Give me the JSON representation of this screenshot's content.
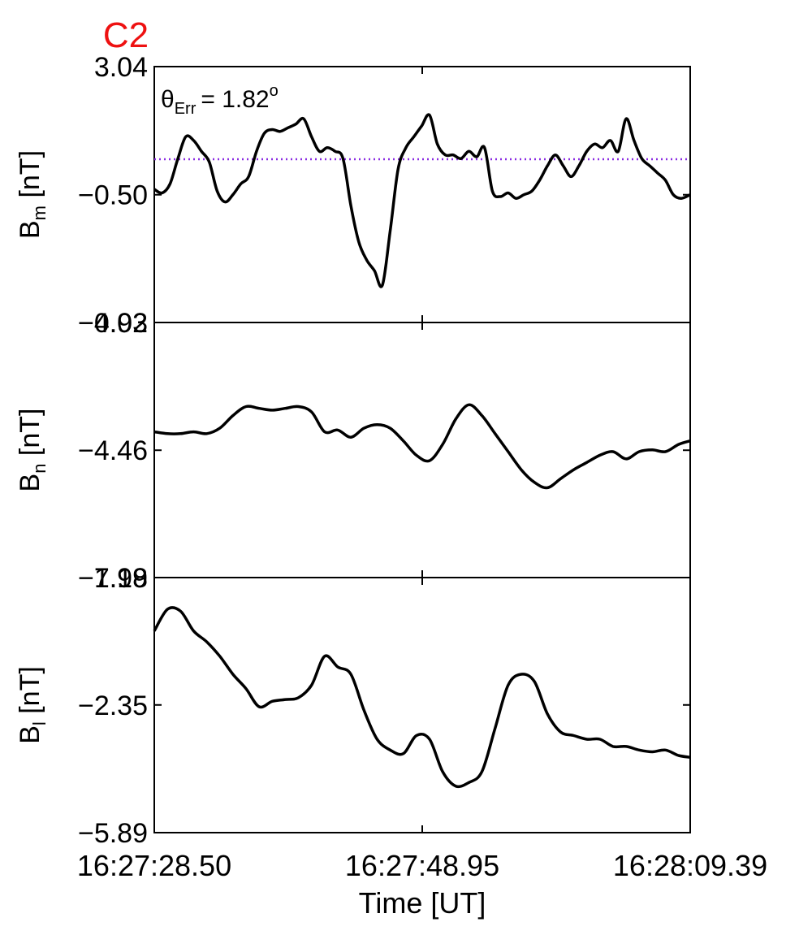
{
  "figure": {
    "spacecraft_label": "C2",
    "spacecraft_color": "#ee1111",
    "x_axis_label": "Time [UT]",
    "x_tick_labels": [
      "16:27:28.50",
      "16:27:48.95",
      "16:28:09.39"
    ],
    "annotation": {
      "theta": "θ",
      "subscript": "Err",
      "value": "=  1.82",
      "degree": "o"
    }
  },
  "chart_data": [
    {
      "type": "line",
      "title": "",
      "ylabel": {
        "main": "B",
        "sub": "m",
        "unit": " [nT]"
      },
      "ylim": [
        -4.03,
        3.04
      ],
      "yticks": [
        -4.03,
        -0.5,
        3.04
      ],
      "ytick_labels": [
        "−4.03",
        "−0.50",
        "3.04"
      ],
      "xlim": [
        0,
        40.89
      ],
      "reference_line": {
        "value": 0.48,
        "color": "#8a2be2",
        "style": "dotted"
      },
      "series": [
        {
          "color": "#000000",
          "x": [
            0,
            0.6,
            1.2,
            1.8,
            2.4,
            3.0,
            3.6,
            4.2,
            4.8,
            5.4,
            6.0,
            6.6,
            7.2,
            7.8,
            8.4,
            9.0,
            9.6,
            10.2,
            10.8,
            11.4,
            12.0,
            12.6,
            13.2,
            13.8,
            14.4,
            15.0,
            15.6,
            16.2,
            16.8,
            17.4,
            18.0,
            18.6,
            19.2,
            19.8,
            20.4,
            21.0,
            21.6,
            22.2,
            22.8,
            23.4,
            24.0,
            24.6,
            25.2,
            25.8,
            26.4,
            27.0,
            27.6,
            28.2,
            28.8,
            29.4,
            30.0,
            30.6,
            31.2,
            31.8,
            32.4,
            33.0,
            33.6,
            34.2,
            34.8,
            35.4,
            36.0,
            36.6,
            37.2,
            37.8,
            38.4,
            39.0,
            39.6,
            40.2,
            40.89
          ],
          "y": [
            -0.35,
            -0.45,
            -0.2,
            0.5,
            1.1,
            1.0,
            0.7,
            0.4,
            -0.4,
            -0.7,
            -0.5,
            -0.2,
            0.0,
            0.7,
            1.2,
            1.3,
            1.25,
            1.35,
            1.45,
            1.6,
            1.1,
            0.7,
            0.8,
            0.7,
            0.5,
            -0.8,
            -1.8,
            -2.3,
            -2.6,
            -3.0,
            -1.5,
            0.2,
            0.8,
            1.1,
            1.4,
            1.7,
            0.9,
            0.6,
            0.6,
            0.5,
            0.7,
            0.55,
            0.8,
            -0.4,
            -0.55,
            -0.45,
            -0.6,
            -0.5,
            -0.4,
            -0.1,
            0.3,
            0.6,
            0.3,
            0.0,
            0.3,
            0.7,
            0.9,
            0.8,
            1.0,
            0.7,
            1.6,
            1.0,
            0.5,
            0.3,
            0.1,
            -0.1,
            -0.5,
            -0.6,
            -0.5
          ]
        }
      ]
    },
    {
      "type": "line",
      "title": "",
      "ylabel": {
        "main": "B",
        "sub": "n",
        "unit": " [nT]"
      },
      "ylim": [
        -7.99,
        -0.92
      ],
      "yticks": [
        -7.99,
        -4.46,
        -0.92
      ],
      "ytick_labels": [
        "−7.99",
        "−4.46",
        "−0.92"
      ],
      "xlim": [
        0,
        40.89
      ],
      "series": [
        {
          "color": "#000000",
          "x": [
            0,
            1.0,
            2.0,
            3.0,
            4.0,
            5.0,
            6.0,
            7.0,
            8.0,
            9.0,
            10.0,
            11.0,
            12.0,
            13.0,
            14.0,
            15.0,
            16.0,
            17.0,
            18.0,
            19.0,
            20.0,
            21.0,
            22.0,
            23.0,
            24.0,
            25.0,
            26.0,
            27.0,
            28.0,
            29.0,
            30.0,
            31.0,
            32.0,
            33.0,
            34.0,
            35.0,
            36.0,
            37.0,
            38.0,
            39.0,
            40.0,
            40.89
          ],
          "y": [
            -3.95,
            -4.0,
            -4.0,
            -3.95,
            -4.0,
            -3.85,
            -3.5,
            -3.25,
            -3.3,
            -3.35,
            -3.3,
            -3.25,
            -3.4,
            -3.95,
            -3.9,
            -4.1,
            -3.85,
            -3.75,
            -3.85,
            -4.2,
            -4.6,
            -4.75,
            -4.3,
            -3.6,
            -3.2,
            -3.5,
            -4.0,
            -4.5,
            -5.0,
            -5.35,
            -5.5,
            -5.25,
            -5.0,
            -4.8,
            -4.6,
            -4.5,
            -4.7,
            -4.5,
            -4.45,
            -4.5,
            -4.3,
            -4.2
          ]
        }
      ]
    },
    {
      "type": "line",
      "title": "",
      "ylabel": {
        "main": "B",
        "sub": "l",
        "unit": " [nT]"
      },
      "ylim": [
        -5.89,
        1.18
      ],
      "yticks": [
        -5.89,
        -2.35,
        1.18
      ],
      "ytick_labels": [
        "−5.89",
        "−2.35",
        "1.18"
      ],
      "xlim": [
        0,
        40.89
      ],
      "series": [
        {
          "color": "#000000",
          "x": [
            0,
            1.0,
            2.0,
            3.0,
            4.0,
            5.0,
            6.0,
            7.0,
            8.0,
            9.0,
            10.0,
            11.0,
            12.0,
            13.0,
            14.0,
            15.0,
            16.0,
            17.0,
            18.0,
            19.0,
            20.0,
            21.0,
            22.0,
            23.0,
            24.0,
            25.0,
            26.0,
            27.0,
            28.0,
            29.0,
            30.0,
            31.0,
            32.0,
            33.0,
            34.0,
            35.0,
            36.0,
            37.0,
            38.0,
            39.0,
            40.0,
            40.89
          ],
          "y": [
            -0.3,
            0.3,
            0.25,
            -0.3,
            -0.6,
            -1.0,
            -1.5,
            -1.9,
            -2.4,
            -2.25,
            -2.2,
            -2.15,
            -1.8,
            -1.0,
            -1.3,
            -1.5,
            -2.5,
            -3.3,
            -3.6,
            -3.7,
            -3.2,
            -3.3,
            -4.2,
            -4.6,
            -4.5,
            -4.2,
            -3.0,
            -1.8,
            -1.5,
            -1.7,
            -2.6,
            -3.1,
            -3.2,
            -3.3,
            -3.3,
            -3.5,
            -3.5,
            -3.6,
            -3.65,
            -3.6,
            -3.75,
            -3.8
          ]
        }
      ]
    }
  ]
}
